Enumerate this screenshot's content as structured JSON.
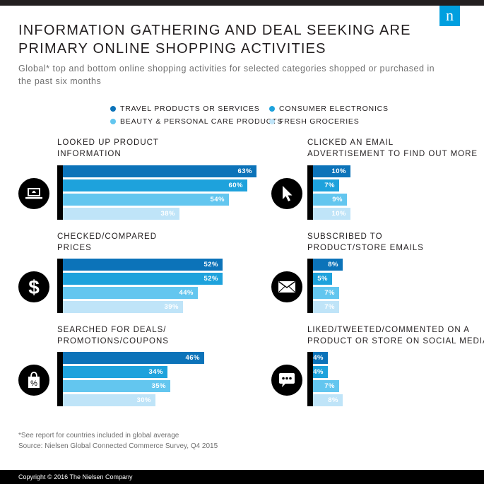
{
  "logo": {
    "letter": "n"
  },
  "title_lines": [
    "INFORMATION GATHERING AND DEAL SEEKING ARE",
    "PRIMARY ONLINE SHOPPING ACTIVITIES"
  ],
  "subtitle": "Global* top and bottom online shopping activities for selected categories shopped or purchased in the past six months",
  "colors": {
    "series": [
      "#0c73b9",
      "#1ea2dc",
      "#63c6ef",
      "#bfe4f8"
    ],
    "axis": "#000000",
    "icon_bg": "#000000"
  },
  "icons": [
    "laptop-icon",
    "dollar-icon",
    "shopping-bag-percent-icon",
    "cursor-icon",
    "envelope-icon",
    "chat-bubble-icon"
  ],
  "chart_data": {
    "type": "bar",
    "orientation": "horizontal",
    "series_names": [
      "TRAVEL PRODUCTS OR SERVICES",
      "CONSUMER ELECTRONICS",
      "BEAUTY & PERSONAL CARE PRODUCTS",
      "FRESH GROCERIES"
    ],
    "unit": "%",
    "panels": [
      {
        "label_lines": [
          "LOOKED UP PRODUCT",
          "INFORMATION"
        ],
        "values": [
          63,
          60,
          54,
          38
        ]
      },
      {
        "label_lines": [
          "CHECKED/COMPARED",
          "PRICES"
        ],
        "values": [
          52,
          52,
          44,
          39
        ]
      },
      {
        "label_lines": [
          "SEARCHED FOR DEALS/",
          "PROMOTIONS/COUPONS"
        ],
        "values": [
          46,
          34,
          35,
          30
        ]
      },
      {
        "label_lines": [
          "CLICKED AN EMAIL",
          "ADVERTISEMENT TO FIND OUT MORE"
        ],
        "values": [
          10,
          7,
          9,
          10
        ]
      },
      {
        "label_lines": [
          "SUBSCRIBED TO",
          "PRODUCT/STORE EMAILS"
        ],
        "values": [
          8,
          5,
          7,
          7
        ]
      },
      {
        "label_lines": [
          "LIKED/TWEETED/COMMENTED ON A",
          "PRODUCT OR STORE ON SOCIAL MEDIA"
        ],
        "values": [
          4,
          4,
          7,
          8
        ]
      }
    ]
  },
  "footnote_lines": [
    "*See report for countries included in global average",
    "Source: Nielsen Global Connected Commerce Survey, Q4 2015"
  ],
  "footer": "Copyright © 2016 The Nielsen Company"
}
